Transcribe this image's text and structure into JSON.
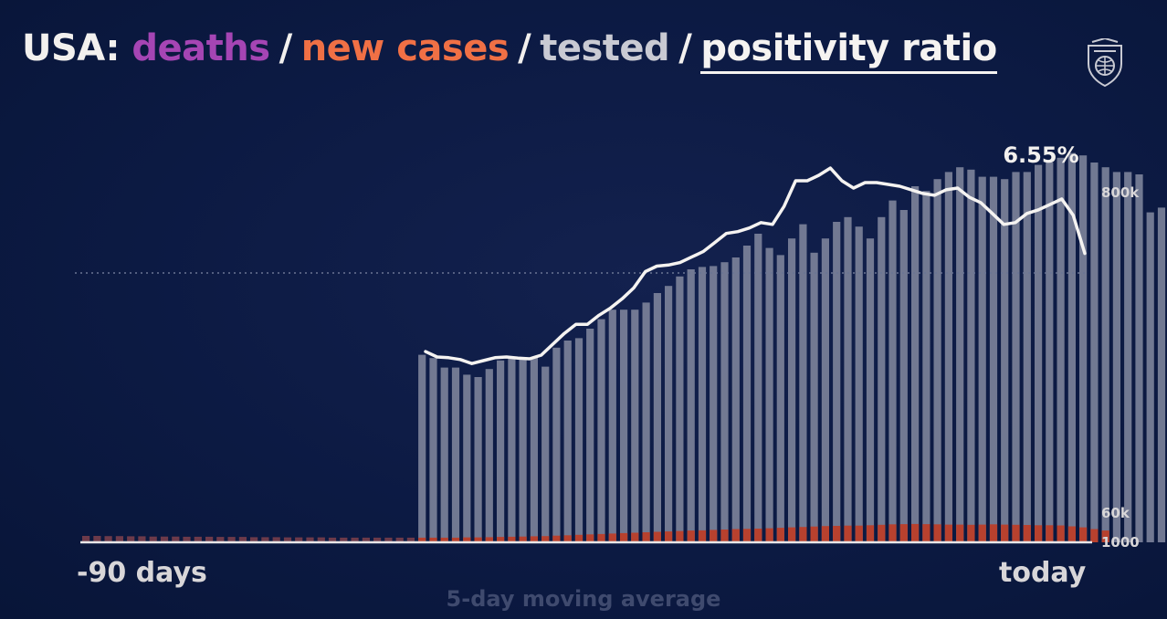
{
  "title": {
    "prefix": "USA:",
    "deaths": "deaths",
    "cases": "new cases",
    "tested": "tested",
    "ratio": "positivity ratio",
    "separator": "/"
  },
  "colors": {
    "deaths": "#a545b4",
    "cases": "#e0502f",
    "tested": "#c9cad3",
    "ratio": "#f5f3f1",
    "background": "#0c1a43"
  },
  "logo_icon": "university-shield-icon",
  "x_labels": {
    "left": "-90 days",
    "right": "today"
  },
  "caption": "5-day moving average",
  "chart_data": {
    "type": "bar",
    "title": "",
    "y_tick_labels": [
      "800k",
      "60k",
      "1000"
    ],
    "annotation": "6.55%",
    "x_range": [
      -90,
      0
    ],
    "series": [
      {
        "name": "tested",
        "kind": "bar",
        "start_index": 30,
        "values": [
          0.395,
          0.388,
          0.368,
          0.368,
          0.353,
          0.348,
          0.365,
          0.383,
          0.388,
          0.39,
          0.39,
          0.37,
          0.41,
          0.425,
          0.43,
          0.45,
          0.47,
          0.49,
          0.49,
          0.49,
          0.505,
          0.525,
          0.54,
          0.56,
          0.575,
          0.58,
          0.582,
          0.59,
          0.6,
          0.625,
          0.65,
          0.62,
          0.605,
          0.64,
          0.67,
          0.61,
          0.64,
          0.675,
          0.685,
          0.665,
          0.64,
          0.685,
          0.72,
          0.7,
          0.75,
          0.74,
          0.765,
          0.78,
          0.79,
          0.785,
          0.77,
          0.77,
          0.765,
          0.78,
          0.78,
          0.795,
          0.8,
          0.81,
          0.82,
          0.815,
          0.8,
          0.79,
          0.78,
          0.78,
          0.775,
          0.695,
          0.705
        ]
      },
      {
        "name": "new cases",
        "kind": "bar",
        "start_index": 0,
        "values": [
          0.03,
          0.03,
          0.029,
          0.029,
          0.028,
          0.028,
          0.027,
          0.027,
          0.027,
          0.026,
          0.026,
          0.026,
          0.025,
          0.025,
          0.025,
          0.024,
          0.024,
          0.024,
          0.023,
          0.023,
          0.023,
          0.023,
          0.022,
          0.022,
          0.022,
          0.022,
          0.022,
          0.022,
          0.022,
          0.022,
          0.022,
          0.022,
          0.022,
          0.022,
          0.023,
          0.023,
          0.024,
          0.025,
          0.026,
          0.027,
          0.028,
          0.029,
          0.031,
          0.033,
          0.035,
          0.037,
          0.039,
          0.041,
          0.043,
          0.045,
          0.047,
          0.049,
          0.051,
          0.053,
          0.055,
          0.056,
          0.058,
          0.06,
          0.062,
          0.063,
          0.064,
          0.066,
          0.068,
          0.07,
          0.072,
          0.074,
          0.076,
          0.077,
          0.078,
          0.078,
          0.08,
          0.082,
          0.084,
          0.085,
          0.086,
          0.085,
          0.084,
          0.083,
          0.083,
          0.082,
          0.083,
          0.084,
          0.083,
          0.082,
          0.081,
          0.08,
          0.08,
          0.079,
          0.075,
          0.07,
          0.062,
          0.055
        ]
      },
      {
        "name": "positivity ratio",
        "kind": "line",
        "start_index": 30,
        "values": [
          0.53,
          0.515,
          0.513,
          0.508,
          0.497,
          0.505,
          0.513,
          0.515,
          0.512,
          0.51,
          0.52,
          0.55,
          0.58,
          0.605,
          0.605,
          0.63,
          0.65,
          0.675,
          0.705,
          0.75,
          0.765,
          0.768,
          0.775,
          0.79,
          0.805,
          0.83,
          0.855,
          0.86,
          0.87,
          0.885,
          0.88,
          0.93,
          1.0,
          1.0,
          1.015,
          1.035,
          1.0,
          0.98,
          0.995,
          0.995,
          0.99,
          0.985,
          0.975,
          0.965,
          0.96,
          0.975,
          0.98,
          0.955,
          0.94,
          0.91,
          0.88,
          0.885,
          0.91,
          0.92,
          0.935,
          0.95,
          0.905,
          0.8
        ]
      }
    ],
    "grid": false
  }
}
